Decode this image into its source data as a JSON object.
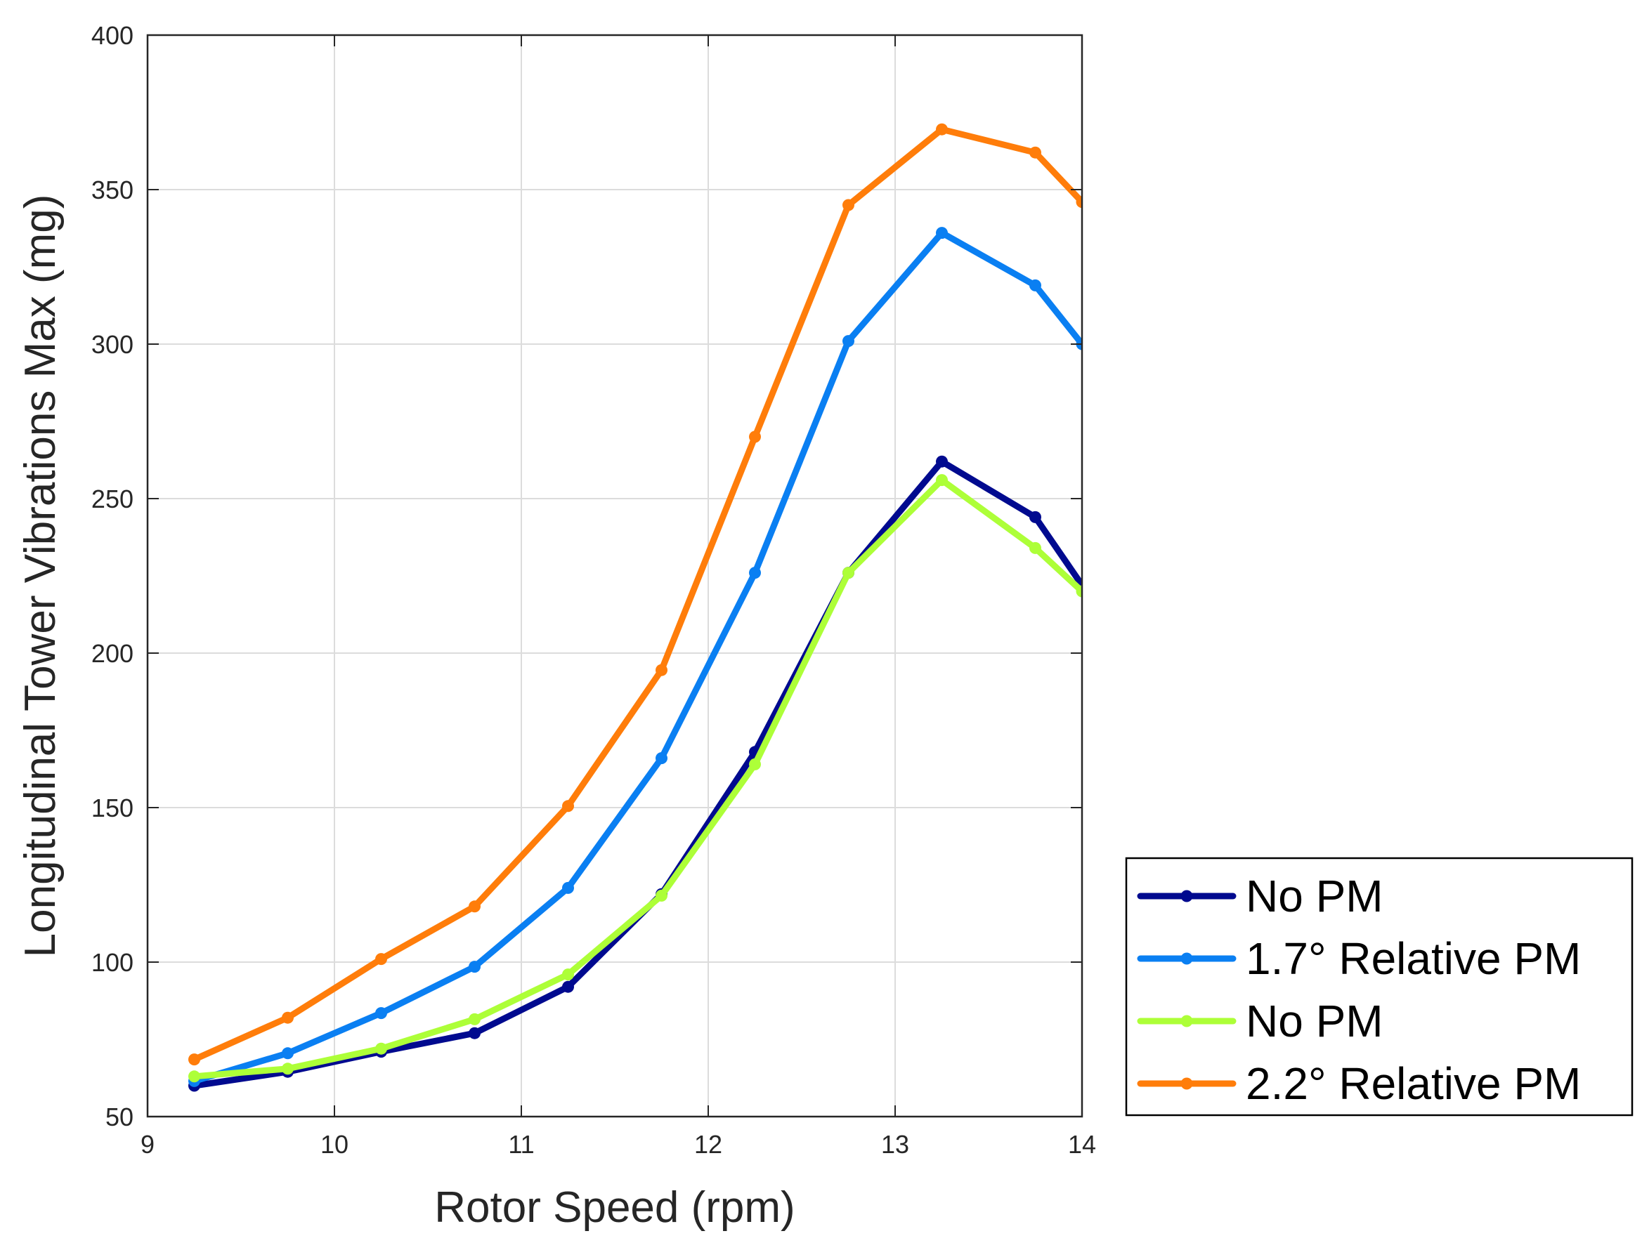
{
  "chart_data": {
    "type": "line",
    "title": "",
    "xlabel": "Rotor Speed (rpm)",
    "ylabel": "Longitudinal Tower Vibrations Max (mg)",
    "xlim": [
      9,
      14
    ],
    "ylim": [
      50,
      400
    ],
    "xticks": [
      "9",
      "10",
      "11",
      "12",
      "13",
      "14"
    ],
    "yticks": [
      "50",
      "100",
      "150",
      "200",
      "250",
      "300",
      "350",
      "400"
    ],
    "grid": true,
    "legend_position": "outside-bottom-right",
    "x": [
      9.25,
      9.75,
      10.25,
      10.75,
      11.25,
      11.75,
      12.25,
      12.75,
      13.25,
      13.75,
      14.0
    ],
    "series": [
      {
        "name": "No PM",
        "color": "#000a8f",
        "values": [
          60,
          64.5,
          71,
          77,
          92,
          122,
          168,
          226,
          262,
          244,
          222
        ]
      },
      {
        "name": "1.7° Relative PM",
        "color": "#0a7ff2",
        "values": [
          61.5,
          70.5,
          83.5,
          98.5,
          124,
          166,
          226,
          301,
          336,
          319,
          300
        ]
      },
      {
        "name": "No PM",
        "color": "#adff38",
        "values": [
          63,
          65.5,
          72,
          81.5,
          96,
          121.5,
          164,
          226,
          256,
          234,
          220
        ]
      },
      {
        "name": "2.2° Relative PM",
        "color": "#ff7d0a",
        "values": [
          68.5,
          82,
          101,
          118,
          150.5,
          194.5,
          270,
          345,
          369.5,
          362,
          346
        ]
      }
    ]
  }
}
